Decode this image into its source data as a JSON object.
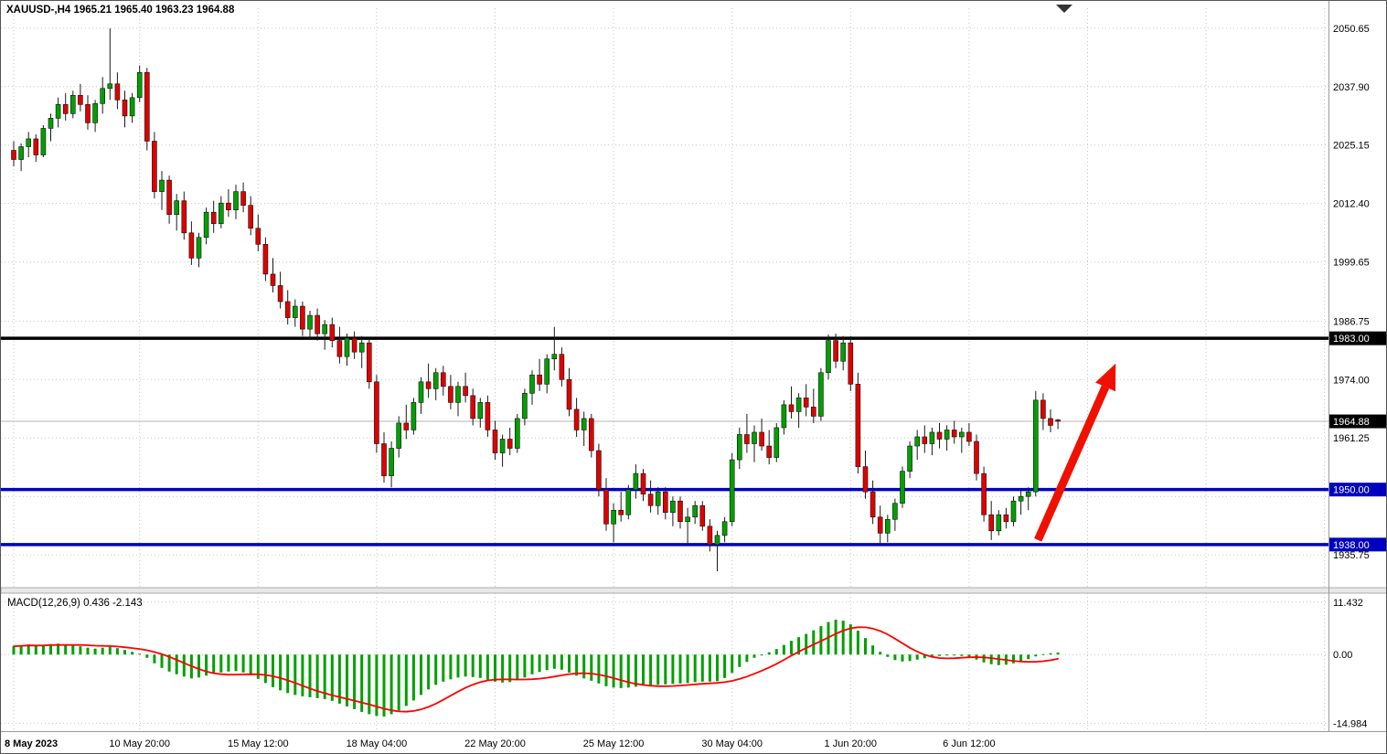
{
  "window": {
    "app": "MetaTrader chart"
  },
  "header": {
    "ohlc_info": "XAUUSD-,H4 1965.21 1965.40 1963.23 1964.88"
  },
  "colors": {
    "background": "#ffffff",
    "grid": "#c6c6c6",
    "up": "#00A000",
    "down": "#E00000",
    "candle_outline": "#101010",
    "wick": "#1a1a1a",
    "macd_hist": "#00A000",
    "macd_signal": "#FF0000",
    "axis_text": "#000000",
    "divider": "#9a9a9a",
    "divider_fill": "#e8e8e8",
    "current_price_line": "#b4b4b4",
    "scroll_icon": "#333333"
  },
  "chart_data": [
    {
      "type": "candlestick",
      "symbol": "XAUUSD-",
      "timeframe": "H4",
      "current_bar": {
        "open": 1965.21,
        "high": 1965.4,
        "low": 1963.23,
        "close": 1964.88
      },
      "ylim": [
        1929.0,
        2055.0
      ],
      "y_axis_labels": [
        {
          "text": "2050.65",
          "value": 2050.65
        },
        {
          "text": "2037.90",
          "value": 2037.9
        },
        {
          "text": "2025.15",
          "value": 2025.15
        },
        {
          "text": "2012.40",
          "value": 2012.4
        },
        {
          "text": "1999.65",
          "value": 1999.65
        },
        {
          "text": "1986.75",
          "value": 1986.75
        },
        {
          "text": "1974.00",
          "value": 1974.0
        },
        {
          "text": "1961.25",
          "value": 1961.25
        },
        {
          "text": "1935.75",
          "value": 1935.75
        }
      ],
      "y_gridlines": [
        2050.65,
        2037.9,
        2025.15,
        2012.4,
        1999.65,
        1986.75,
        1974.0,
        1961.25,
        1948.5,
        1935.75
      ],
      "price_badges": [
        {
          "text": "1983.00",
          "price": 1983.0,
          "bg": "#000000",
          "fg": "#ffffff"
        },
        {
          "text": "1964.88",
          "price": 1964.88,
          "bg": "#000000",
          "fg": "#ffffff"
        },
        {
          "text": "1950.00",
          "price": 1950.0,
          "bg": "#0000C0",
          "fg": "#ffffff"
        },
        {
          "text": "1938.00",
          "price": 1938.0,
          "bg": "#0000C0",
          "fg": "#ffffff"
        }
      ],
      "hlines": [
        {
          "price": 1983.0,
          "color": "#000000",
          "width": 3.5
        },
        {
          "price": 1950.0,
          "color": "#0000C0",
          "width": 3.5
        },
        {
          "price": 1938.0,
          "color": "#0000C0",
          "width": 3.5
        },
        {
          "price": 1964.88,
          "color": "#b4b4b4",
          "width": 1
        }
      ],
      "x_labels": [
        {
          "index": 0,
          "label": "8 May 2023",
          "bold": true
        },
        {
          "index": 17,
          "label": "10 May 20:00",
          "bold": false
        },
        {
          "index": 33,
          "label": "15 May 12:00",
          "bold": false
        },
        {
          "index": 49,
          "label": "18 May 04:00",
          "bold": false
        },
        {
          "index": 65,
          "label": "22 May 20:00",
          "bold": false
        },
        {
          "index": 81,
          "label": "25 May 12:00",
          "bold": false
        },
        {
          "index": 97,
          "label": "30 May 04:00",
          "bold": false
        },
        {
          "index": 113,
          "label": "1 Jun 20:00",
          "bold": false
        },
        {
          "index": 129,
          "label": "6 Jun 12:00",
          "bold": false
        }
      ],
      "x_gridlines_extra": [
        145,
        161,
        177
      ],
      "arrow": {
        "from": {
          "index": 138.3,
          "price": 1939.0
        },
        "to": {
          "index": 148.8,
          "price": 1977.5
        },
        "color": "#F01000"
      },
      "candles": [
        [
          2024.0,
          2026.0,
          2020.5,
          2022.0
        ],
        [
          2022.0,
          2025.5,
          2019.5,
          2024.8
        ],
        [
          2024.8,
          2028.0,
          2022.5,
          2026.5
        ],
        [
          2026.5,
          2027.5,
          2021.5,
          2023.0
        ],
        [
          2023.0,
          2029.5,
          2022.5,
          2028.8
        ],
        [
          2028.8,
          2032.0,
          2026.0,
          2031.0
        ],
        [
          2031.0,
          2035.5,
          2029.0,
          2034.0
        ],
        [
          2034.0,
          2036.5,
          2030.5,
          2032.0
        ],
        [
          2032.0,
          2037.0,
          2031.0,
          2036.0
        ],
        [
          2036.0,
          2038.5,
          2032.5,
          2034.0
        ],
        [
          2034.0,
          2036.0,
          2028.5,
          2030.0
        ],
        [
          2030.0,
          2035.0,
          2028.0,
          2034.2
        ],
        [
          2034.2,
          2040.0,
          2032.0,
          2037.5
        ],
        [
          2037.5,
          2050.6,
          2035.0,
          2038.5
        ],
        [
          2038.5,
          2041.0,
          2033.0,
          2035.0
        ],
        [
          2035.0,
          2037.0,
          2029.0,
          2031.5
        ],
        [
          2031.5,
          2036.5,
          2030.0,
          2035.5
        ],
        [
          2035.5,
          2042.5,
          2034.5,
          2041.0
        ],
        [
          2041.0,
          2042.0,
          2024.0,
          2026.0
        ],
        [
          2026.0,
          2028.0,
          2013.5,
          2015.0
        ],
        [
          2015.0,
          2019.5,
          2011.0,
          2017.5
        ],
        [
          2017.5,
          2018.5,
          2008.0,
          2010.0
        ],
        [
          2010.0,
          2014.5,
          2006.5,
          2013.0
        ],
        [
          2013.0,
          2015.0,
          2004.5,
          2006.0
        ],
        [
          2006.0,
          2008.5,
          1999.0,
          2000.5
        ],
        [
          2000.5,
          2006.0,
          1998.5,
          2005.0
        ],
        [
          2005.0,
          2011.5,
          2003.5,
          2010.5
        ],
        [
          2010.5,
          2013.0,
          2006.0,
          2008.0
        ],
        [
          2008.0,
          2014.0,
          2007.0,
          2012.5
        ],
        [
          2012.5,
          2015.5,
          2009.5,
          2011.0
        ],
        [
          2011.0,
          2016.5,
          2009.0,
          2015.0
        ],
        [
          2015.0,
          2017.0,
          2010.5,
          2012.0
        ],
        [
          2012.0,
          2014.0,
          2005.5,
          2007.0
        ],
        [
          2007.0,
          2010.0,
          2002.0,
          2003.5
        ],
        [
          2003.5,
          2005.0,
          1995.5,
          1997.0
        ],
        [
          1997.0,
          2000.5,
          1993.0,
          1994.5
        ],
        [
          1994.5,
          1997.5,
          1989.5,
          1991.0
        ],
        [
          1991.0,
          1993.5,
          1986.0,
          1987.5
        ],
        [
          1987.5,
          1991.5,
          1985.5,
          1990.0
        ],
        [
          1990.0,
          1991.0,
          1983.5,
          1985.0
        ],
        [
          1985.0,
          1989.0,
          1983.0,
          1988.0
        ],
        [
          1988.0,
          1989.5,
          1982.5,
          1984.0
        ],
        [
          1984.0,
          1987.0,
          1980.5,
          1986.0
        ],
        [
          1986.0,
          1987.5,
          1981.0,
          1982.5
        ],
        [
          1982.5,
          1985.5,
          1977.5,
          1979.0
        ],
        [
          1979.0,
          1984.0,
          1977.0,
          1983.0
        ],
        [
          1983.0,
          1984.5,
          1978.5,
          1980.0
        ],
        [
          1980.0,
          1983.5,
          1976.5,
          1982.0
        ],
        [
          1982.0,
          1983.0,
          1972.0,
          1973.5
        ],
        [
          1973.5,
          1975.0,
          1958.0,
          1960.0
        ],
        [
          1960.0,
          1962.5,
          1951.5,
          1953.0
        ],
        [
          1953.0,
          1960.5,
          1950.5,
          1959.0
        ],
        [
          1959.0,
          1966.0,
          1957.0,
          1964.5
        ],
        [
          1964.5,
          1968.5,
          1961.0,
          1963.0
        ],
        [
          1963.0,
          1970.0,
          1962.0,
          1969.0
        ],
        [
          1969.0,
          1974.5,
          1966.5,
          1973.5
        ],
        [
          1973.5,
          1977.5,
          1970.0,
          1972.0
        ],
        [
          1972.0,
          1976.5,
          1969.5,
          1975.5
        ],
        [
          1975.5,
          1977.0,
          1970.5,
          1972.5
        ],
        [
          1972.5,
          1975.0,
          1967.5,
          1969.0
        ],
        [
          1969.0,
          1973.5,
          1966.0,
          1972.5
        ],
        [
          1972.5,
          1975.5,
          1969.0,
          1970.5
        ],
        [
          1970.5,
          1972.0,
          1964.0,
          1965.5
        ],
        [
          1965.5,
          1970.0,
          1963.5,
          1969.0
        ],
        [
          1969.0,
          1970.5,
          1961.5,
          1963.0
        ],
        [
          1963.0,
          1965.0,
          1956.5,
          1958.0
        ],
        [
          1958.0,
          1962.0,
          1955.0,
          1961.0
        ],
        [
          1961.0,
          1963.5,
          1957.5,
          1959.0
        ],
        [
          1959.0,
          1966.5,
          1958.0,
          1965.5
        ],
        [
          1965.5,
          1972.0,
          1964.0,
          1971.0
        ],
        [
          1971.0,
          1976.0,
          1968.5,
          1975.0
        ],
        [
          1975.0,
          1978.5,
          1971.5,
          1973.0
        ],
        [
          1973.0,
          1979.5,
          1971.0,
          1978.5
        ],
        [
          1978.5,
          1985.5,
          1976.0,
          1979.5
        ],
        [
          1979.5,
          1981.0,
          1972.5,
          1974.0
        ],
        [
          1974.0,
          1976.5,
          1966.0,
          1967.5
        ],
        [
          1967.5,
          1970.0,
          1961.5,
          1963.0
        ],
        [
          1963.0,
          1967.0,
          1959.5,
          1965.5
        ],
        [
          1965.5,
          1966.5,
          1957.0,
          1958.5
        ],
        [
          1958.5,
          1960.0,
          1948.5,
          1950.0
        ],
        [
          1950.0,
          1952.5,
          1941.0,
          1942.5
        ],
        [
          1942.5,
          1947.0,
          1938.5,
          1945.5
        ],
        [
          1945.5,
          1949.5,
          1943.0,
          1944.5
        ],
        [
          1944.5,
          1951.0,
          1943.5,
          1950.0
        ],
        [
          1950.0,
          1955.5,
          1948.0,
          1953.5
        ],
        [
          1953.5,
          1954.5,
          1947.5,
          1949.0
        ],
        [
          1949.0,
          1952.0,
          1945.0,
          1946.5
        ],
        [
          1946.5,
          1950.5,
          1944.5,
          1949.5
        ],
        [
          1949.5,
          1950.5,
          1943.5,
          1945.0
        ],
        [
          1945.0,
          1948.5,
          1942.0,
          1947.5
        ],
        [
          1947.5,
          1948.5,
          1941.5,
          1943.0
        ],
        [
          1943.0,
          1946.0,
          1937.9,
          1944.0
        ],
        [
          1944.0,
          1947.5,
          1942.5,
          1946.5
        ],
        [
          1946.5,
          1947.5,
          1941.0,
          1942.0
        ],
        [
          1942.0,
          1943.5,
          1936.5,
          1938.0
        ],
        [
          1938.0,
          1941.0,
          1932.2,
          1940.0
        ],
        [
          1940.0,
          1944.0,
          1938.5,
          1943.0
        ],
        [
          1943.0,
          1958.0,
          1942.0,
          1956.5
        ],
        [
          1956.5,
          1963.5,
          1954.5,
          1962.0
        ],
        [
          1962.0,
          1966.5,
          1958.0,
          1960.0
        ],
        [
          1960.0,
          1964.0,
          1956.0,
          1962.5
        ],
        [
          1962.5,
          1965.5,
          1958.5,
          1959.5
        ],
        [
          1959.5,
          1963.0,
          1955.5,
          1957.0
        ],
        [
          1957.0,
          1964.5,
          1956.0,
          1963.5
        ],
        [
          1963.5,
          1969.5,
          1962.0,
          1968.5
        ],
        [
          1968.5,
          1972.5,
          1965.5,
          1967.0
        ],
        [
          1967.0,
          1971.0,
          1963.5,
          1970.0
        ],
        [
          1970.0,
          1973.0,
          1966.0,
          1968.0
        ],
        [
          1968.0,
          1972.0,
          1964.5,
          1966.0
        ],
        [
          1966.0,
          1976.5,
          1965.0,
          1975.5
        ],
        [
          1975.5,
          1983.8,
          1974.0,
          1982.5
        ],
        [
          1982.5,
          1984.0,
          1976.5,
          1978.0
        ],
        [
          1978.0,
          1983.5,
          1976.0,
          1982.0
        ],
        [
          1982.0,
          1983.5,
          1971.5,
          1973.0
        ],
        [
          1973.0,
          1975.5,
          1953.5,
          1955.0
        ],
        [
          1955.0,
          1958.5,
          1948.0,
          1949.5
        ],
        [
          1949.5,
          1952.0,
          1942.5,
          1944.0
        ],
        [
          1944.0,
          1946.5,
          1937.9,
          1940.5
        ],
        [
          1940.5,
          1944.5,
          1938.5,
          1943.5
        ],
        [
          1943.5,
          1948.0,
          1941.0,
          1947.0
        ],
        [
          1947.0,
          1955.0,
          1946.0,
          1954.0
        ],
        [
          1954.0,
          1960.5,
          1952.5,
          1959.5
        ],
        [
          1959.5,
          1963.0,
          1956.5,
          1961.5
        ],
        [
          1961.5,
          1964.0,
          1958.0,
          1960.0
        ],
        [
          1960.0,
          1963.5,
          1957.5,
          1962.5
        ],
        [
          1962.5,
          1964.5,
          1959.0,
          1961.0
        ],
        [
          1961.0,
          1964.0,
          1958.5,
          1963.0
        ],
        [
          1963.0,
          1965.0,
          1960.0,
          1961.5
        ],
        [
          1961.5,
          1963.5,
          1958.0,
          1962.5
        ],
        [
          1962.5,
          1964.5,
          1959.5,
          1960.5
        ],
        [
          1960.5,
          1962.0,
          1952.0,
          1953.5
        ],
        [
          1953.5,
          1955.0,
          1943.0,
          1944.5
        ],
        [
          1944.5,
          1947.5,
          1939.0,
          1941.0
        ],
        [
          1941.0,
          1945.5,
          1940.0,
          1944.5
        ],
        [
          1944.5,
          1946.0,
          1941.5,
          1943.0
        ],
        [
          1943.0,
          1948.5,
          1942.0,
          1947.5
        ],
        [
          1947.5,
          1950.0,
          1944.5,
          1948.5
        ],
        [
          1948.5,
          1950.5,
          1945.5,
          1949.5
        ],
        [
          1949.5,
          1971.5,
          1948.5,
          1969.5
        ],
        [
          1969.5,
          1971.0,
          1963.0,
          1965.5
        ],
        [
          1965.5,
          1967.5,
          1962.5,
          1964.0
        ],
        [
          1965.2,
          1965.4,
          1963.2,
          1964.9
        ]
      ]
    },
    {
      "type": "macd-histogram",
      "label": "MACD(12,26,9) 0.436 -2.143",
      "params": {
        "fast": 12,
        "slow": 26,
        "signal": 9
      },
      "current": {
        "macd": 0.436,
        "signal": -2.143
      },
      "ylim": [
        -16.5,
        13.0
      ],
      "y_axis_labels": [
        {
          "text": "11.432",
          "value": 11.432
        },
        {
          "text": "0.00",
          "value": 0.0
        },
        {
          "text": "-14.984",
          "value": -14.984
        }
      ],
      "y_gridlines": [
        11.432,
        0.0,
        -14.984
      ],
      "signal_method": "sma9",
      "values": [
        1.8,
        2.0,
        2.2,
        1.9,
        2.1,
        2.3,
        2.4,
        2.2,
        2.0,
        1.8,
        1.5,
        1.3,
        1.5,
        1.7,
        1.4,
        1.0,
        0.6,
        0.2,
        -0.7,
        -1.9,
        -2.9,
        -3.7,
        -4.3,
        -4.8,
        -5.2,
        -5.0,
        -4.6,
        -4.2,
        -3.9,
        -3.7,
        -3.6,
        -3.9,
        -4.5,
        -5.3,
        -6.2,
        -7.1,
        -7.8,
        -8.4,
        -8.8,
        -9.1,
        -9.3,
        -9.5,
        -9.7,
        -10.1,
        -10.7,
        -11.3,
        -11.9,
        -12.5,
        -13.0,
        -13.4,
        -13.5,
        -13.0,
        -12.2,
        -11.2,
        -10.0,
        -8.8,
        -7.6,
        -6.6,
        -5.9,
        -5.4,
        -5.0,
        -4.8,
        -4.9,
        -5.1,
        -5.5,
        -5.9,
        -6.1,
        -6.0,
        -5.6,
        -5.0,
        -4.3,
        -3.8,
        -3.4,
        -3.1,
        -3.3,
        -3.9,
        -4.6,
        -5.2,
        -5.7,
        -6.3,
        -6.9,
        -7.2,
        -7.3,
        -7.2,
        -7.0,
        -6.8,
        -6.7,
        -6.6,
        -6.5,
        -6.4,
        -6.3,
        -6.2,
        -6.0,
        -5.9,
        -5.9,
        -5.8,
        -5.1,
        -4.0,
        -2.7,
        -1.6,
        -0.7,
        0.0,
        0.5,
        1.2,
        2.1,
        3.0,
        3.8,
        4.5,
        5.3,
        6.2,
        7.1,
        7.6,
        7.4,
        6.6,
        5.2,
        3.6,
        2.0,
        0.6,
        -0.5,
        -1.2,
        -1.5,
        -1.4,
        -1.1,
        -0.8,
        -0.5,
        -0.3,
        -0.2,
        -0.1,
        -0.3,
        -0.6,
        -1.1,
        -1.7,
        -2.1,
        -2.3,
        -2.2,
        -1.9,
        -1.5,
        -1.0,
        -0.4,
        0.1,
        0.3,
        0.436
      ]
    }
  ]
}
